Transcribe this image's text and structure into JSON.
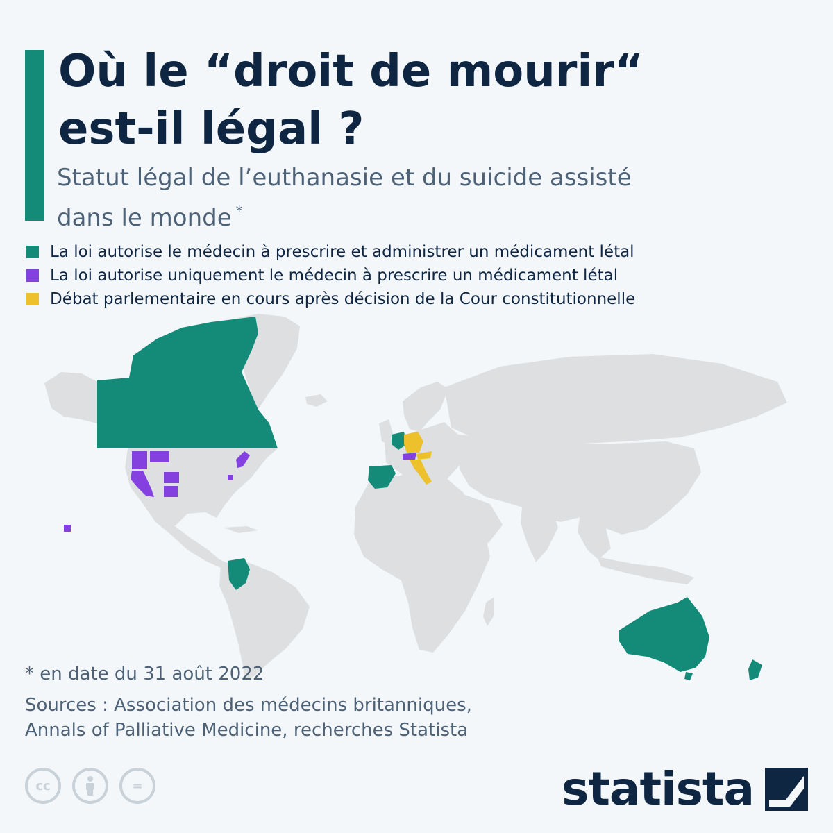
{
  "header": {
    "title_line1": "Où le “droit de mourir“",
    "title_line2": "est-il légal ?",
    "subtitle_line1": "Statut légal de l’euthanasie et du suicide assisté",
    "subtitle_line2": "dans le monde",
    "subtitle_marker": "*"
  },
  "legend": {
    "items": [
      {
        "label": "La loi autorise le médecin à prescrire et administrer un médicament létal",
        "color": "#148a79"
      },
      {
        "label": "La loi autorise uniquement le médecin à prescrire un médicament létal",
        "color": "#8541e0"
      },
      {
        "label": "Débat parlementaire en cours après décision de la Cour constitutionnelle",
        "color": "#ecc12b"
      }
    ]
  },
  "map": {
    "land_color": "#dedfe0",
    "regions": {
      "prescribe_and_administer": [
        "Canada",
        "Colombie",
        "Espagne",
        "Belgique",
        "Pays-Bas",
        "Luxembourg",
        "Australie",
        "Nouvelle-Zélande"
      ],
      "prescribe_only": [
        "Suisse",
        "Oregon",
        "Washington",
        "Californie",
        "Montana",
        "Colorado",
        "Nouveau-Mexique",
        "Vermont",
        "Maine",
        "New Jersey",
        "Hawaï"
      ],
      "parliamentary_debate": [
        "Allemagne",
        "Autriche",
        "Italie"
      ]
    }
  },
  "footer": {
    "note": "* en date du 31 août 2022",
    "sources_line1": "Sources : Association des médecins britanniques,",
    "sources_line2": "Annals of Palliative Medicine, recherches Statista",
    "license_icons": [
      "cc-icon",
      "by-icon",
      "nd-icon"
    ],
    "license_glyphs": {
      "cc": "cc",
      "nd": "="
    },
    "brand": "statista"
  }
}
